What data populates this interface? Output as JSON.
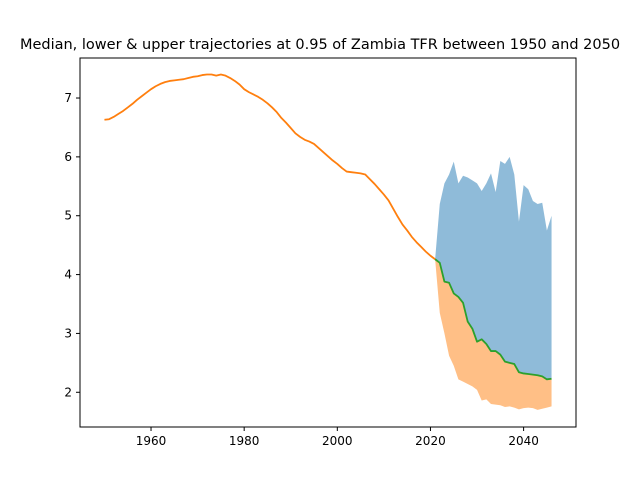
{
  "chart_data": {
    "type": "area",
    "title": "Median, lower & upper trajectories at 0.95 of Zambia TFR between 1950 and 2050",
    "xlabel": "",
    "ylabel": "",
    "xlim": [
      1944.75,
      2051.25
    ],
    "ylim": [
      1.41,
      7.68
    ],
    "x_ticks": [
      1960,
      1980,
      2000,
      2020,
      2040
    ],
    "y_ticks": [
      2,
      3,
      4,
      5,
      6,
      7
    ],
    "grid": false,
    "legend": "none",
    "colors": {
      "historical": "#ff7f0e",
      "median": "#2ca02c",
      "upper_band": "#1f77b4",
      "lower_band": "#ff7f0e"
    },
    "historical": {
      "x": [
        1950,
        1951,
        1952,
        1953,
        1954,
        1955,
        1956,
        1957,
        1958,
        1959,
        1960,
        1961,
        1962,
        1963,
        1964,
        1965,
        1966,
        1967,
        1968,
        1969,
        1970,
        1971,
        1972,
        1973,
        1974,
        1975,
        1976,
        1977,
        1978,
        1979,
        1980,
        1981,
        1982,
        1983,
        1984,
        1985,
        1986,
        1987,
        1988,
        1989,
        1990,
        1991,
        1992,
        1993,
        1994,
        1995,
        1996,
        1997,
        1998,
        1999,
        2000,
        2001,
        2002,
        2003,
        2004,
        2005,
        2006,
        2007,
        2008,
        2009,
        2010,
        2011,
        2012,
        2013,
        2014,
        2015,
        2016,
        2017,
        2018,
        2019,
        2020,
        2021
      ],
      "values": [
        6.63,
        6.64,
        6.68,
        6.73,
        6.78,
        6.84,
        6.9,
        6.97,
        7.03,
        7.09,
        7.15,
        7.2,
        7.24,
        7.27,
        7.29,
        7.3,
        7.31,
        7.32,
        7.34,
        7.36,
        7.37,
        7.39,
        7.4,
        7.4,
        7.38,
        7.4,
        7.38,
        7.34,
        7.29,
        7.23,
        7.15,
        7.1,
        7.06,
        7.02,
        6.97,
        6.91,
        6.84,
        6.76,
        6.66,
        6.58,
        6.49,
        6.4,
        6.34,
        6.29,
        6.26,
        6.22,
        6.15,
        6.08,
        6.01,
        5.94,
        5.88,
        5.81,
        5.75,
        5.74,
        5.73,
        5.72,
        5.7,
        5.62,
        5.54,
        5.45,
        5.36,
        5.26,
        5.12,
        4.98,
        4.85,
        4.75,
        4.64,
        4.55,
        4.47,
        4.39,
        4.32,
        4.26
      ]
    },
    "projection": {
      "x": [
        2021,
        2022,
        2023,
        2024,
        2025,
        2026,
        2027,
        2028,
        2029,
        2030,
        2031,
        2032,
        2033,
        2034,
        2035,
        2036,
        2037,
        2038,
        2039,
        2040,
        2041,
        2042,
        2043,
        2044,
        2045,
        2046
      ],
      "median": [
        4.26,
        4.2,
        3.88,
        3.86,
        3.68,
        3.62,
        3.52,
        3.2,
        3.08,
        2.86,
        2.9,
        2.82,
        2.7,
        2.7,
        2.64,
        2.52,
        2.5,
        2.48,
        2.34,
        2.32,
        2.31,
        2.3,
        2.29,
        2.27,
        2.22,
        2.23
      ],
      "upper": [
        4.26,
        5.2,
        5.55,
        5.7,
        5.92,
        5.55,
        5.68,
        5.65,
        5.6,
        5.55,
        5.42,
        5.55,
        5.72,
        5.4,
        5.93,
        5.88,
        6.0,
        5.7,
        4.9,
        5.52,
        5.45,
        5.25,
        5.2,
        5.22,
        4.75,
        5.0
      ],
      "lower": [
        4.26,
        3.35,
        3.0,
        2.62,
        2.45,
        2.22,
        2.18,
        2.14,
        2.1,
        2.04,
        1.86,
        1.88,
        1.8,
        1.79,
        1.78,
        1.75,
        1.76,
        1.74,
        1.71,
        1.73,
        1.74,
        1.73,
        1.7,
        1.72,
        1.74,
        1.76
      ]
    }
  }
}
